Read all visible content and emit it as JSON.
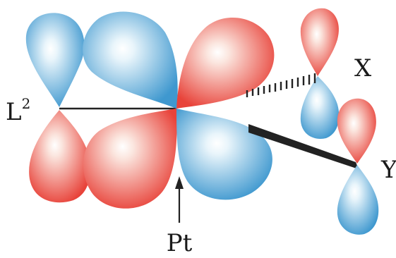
{
  "labels": {
    "pt": "Pt",
    "l_main": "L",
    "l_sup": "2",
    "x": "X",
    "y": "Y"
  },
  "colors": {
    "red": "#e8433a",
    "red_light": "#fbe6df",
    "blue": "#3f98cf",
    "blue_light": "#e9f5fb",
    "line": "#222222"
  }
}
